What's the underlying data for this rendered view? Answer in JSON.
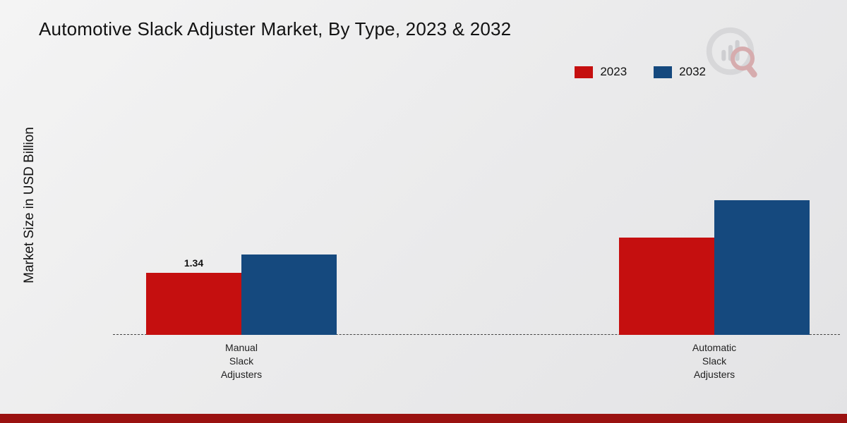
{
  "title": "Automotive Slack Adjuster Market, By Type, 2023 & 2032",
  "ylabel": "Market Size in USD Billion",
  "legend": [
    {
      "label": "2023",
      "color": "#c50f0f"
    },
    {
      "label": "2032",
      "color": "#15497e"
    }
  ],
  "chart_data": {
    "type": "bar",
    "title": "Automotive Slack Adjuster Market, By Type, 2023 & 2032",
    "ylabel": "Market Size in USD Billion",
    "xlabel": "",
    "categories": [
      "Manual\nSlack\nAdjusters",
      "Automatic\nSlack\nAdjusters"
    ],
    "series": [
      {
        "name": "2023",
        "color": "#c50f0f",
        "values": [
          1.34,
          2.1
        ],
        "labels": [
          "1.34",
          ""
        ]
      },
      {
        "name": "2032",
        "color": "#15497e",
        "values": [
          1.74,
          2.9
        ],
        "labels": [
          "",
          ""
        ]
      }
    ],
    "ylim": [
      0,
      3.2
    ],
    "grid": false,
    "legend_position": "top-right",
    "baseline_style": "dashed"
  },
  "footer": {
    "accent_color": "#9a1110"
  },
  "brand": {
    "icon": "bar-chart-magnifier-logo"
  }
}
